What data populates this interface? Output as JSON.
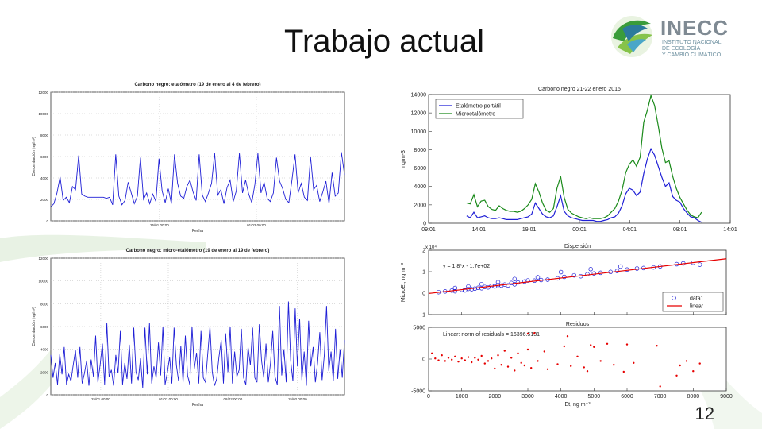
{
  "slide": {
    "title": "Trabajo actual",
    "page_number": "12",
    "logo": {
      "name": "INECC",
      "line1": "INSTITUTO NACIONAL",
      "line2": "DE ECOLOGÍA",
      "line3": "Y CAMBIO CLIMÁTICO"
    }
  },
  "colors": {
    "blue": "#1f1fd6",
    "green": "#1a8a1a",
    "red": "#e60000"
  },
  "chart_data": [
    {
      "id": "etalometro",
      "type": "line",
      "title": "Carbono negro: etalómetro (19 de enero al 4 de febrero)",
      "xlabel": "Fecha",
      "ylabel": "Concentración [ng/m³]",
      "xtick_labels": [
        "25/01 00:00",
        "01/02 00:00"
      ],
      "yticks": [
        0,
        2000,
        4000,
        6000,
        8000,
        10000,
        12000
      ],
      "ylim": [
        0,
        12000
      ],
      "grid": true,
      "series": [
        {
          "color": "#1f1fd6",
          "values": [
            1300,
            1600,
            2600,
            4100,
            1900,
            2200,
            1700,
            3200,
            2900,
            6100,
            2500,
            2300,
            2200,
            2200,
            2200,
            2200,
            2200,
            2200,
            2100,
            2200,
            1500,
            6200,
            2300,
            1500,
            1900,
            3600,
            2600,
            1600,
            2300,
            5900,
            2000,
            2600,
            1600,
            2500,
            1800,
            5800,
            2800,
            1700,
            3000,
            1600,
            6200,
            3500,
            2300,
            2100,
            3200,
            3800,
            2700,
            1900,
            6200,
            2400,
            1800,
            2600,
            3500,
            6300,
            2400,
            2900,
            1600,
            3100,
            3800,
            1800,
            2800,
            6300,
            2600,
            3800,
            2500,
            1700,
            3400,
            6300,
            2600,
            3600,
            2100,
            1800,
            2600,
            5900,
            3700,
            3000,
            2000,
            1700,
            3800,
            6200,
            2600,
            3500,
            2200,
            1900,
            6000,
            2900,
            3300,
            1800,
            2700,
            3700,
            1600,
            4500,
            2300,
            2600,
            6400,
            4300
          ]
        }
      ]
    },
    {
      "id": "microetalometro",
      "type": "line",
      "title": "Carbono negro: micro-etalómetro (19 de enero al 19 de febrero)",
      "xlabel": "Fecha",
      "ylabel": "Concentración [ng/m³]",
      "xtick_labels": [
        "25/01 00:00",
        "01/02 00:00",
        "08/02 00:00",
        "15/02 00:00"
      ],
      "yticks": [
        0,
        2000,
        4000,
        6000,
        8000,
        10000,
        12000
      ],
      "ylim": [
        0,
        12000
      ],
      "grid": true,
      "series": [
        {
          "color": "#1f1fd6",
          "values": [
            3500,
            1500,
            2800,
            900,
            3600,
            1800,
            4200,
            900,
            1800,
            1200,
            2600,
            3900,
            1500,
            4200,
            1000,
            1900,
            3000,
            800,
            3100,
            1600,
            5200,
            1100,
            2600,
            4500,
            900,
            6300,
            1600,
            2200,
            800,
            3500,
            1900,
            5600,
            900,
            2800,
            1400,
            4400,
            1000,
            5900,
            2000,
            1300,
            3200,
            600,
            5900,
            1800,
            6300,
            1000,
            2500,
            1500,
            4600,
            1700,
            6000,
            900,
            2000,
            3300,
            1000,
            5900,
            2600,
            1200,
            4300,
            1100,
            5200,
            1700,
            900,
            6000,
            2300,
            3700,
            1000,
            5600,
            1500,
            1100,
            3600,
            6000,
            2000,
            800,
            1400,
            3300,
            4800,
            1000,
            5400,
            2000,
            6000,
            1000,
            3800,
            1600,
            2200,
            5800,
            1500,
            900,
            4200,
            2600,
            5900,
            1500,
            1100,
            6200,
            3000,
            1500,
            4500,
            1100,
            2800,
            5600,
            1600,
            900,
            7800,
            1700,
            4000,
            1100,
            8200,
            3000,
            1200,
            7600,
            2500,
            6700,
            1300,
            3800,
            800,
            6500,
            2500,
            4200,
            1100,
            2800,
            5500,
            1300,
            3500,
            7800,
            2100,
            3800,
            1200,
            5800,
            1400,
            4000,
            1500,
            4800
          ]
        }
      ]
    },
    {
      "id": "carbono-negro-21-22",
      "type": "line",
      "title": "Carbono negro 21-22 enero 2015",
      "ylabel": "ng/m-3",
      "xtick_labels": [
        "09:01",
        "14:01",
        "19:01",
        "00:01",
        "04:01",
        "09:01",
        "14:01"
      ],
      "yticks": [
        0,
        2000,
        4000,
        6000,
        8000,
        10000,
        12000,
        14000
      ],
      "ylim": [
        0,
        14000
      ],
      "legend": "top-left",
      "series": [
        {
          "name": "Etalómetro portátil",
          "color": "#1f1fd6",
          "values": [
            800,
            600,
            1200,
            600,
            700,
            800,
            600,
            500,
            500,
            600,
            500,
            400,
            400,
            400,
            400,
            500,
            600,
            700,
            1000,
            2200,
            1600,
            1000,
            700,
            600,
            800,
            1800,
            3000,
            1300,
            800,
            600,
            500,
            400,
            300,
            300,
            300,
            300,
            200,
            200,
            300,
            400,
            600,
            700,
            1100,
            1900,
            3200,
            3800,
            3600,
            3000,
            3400,
            5400,
            7000,
            8100,
            7400,
            6200,
            5000,
            4000,
            4400,
            2900,
            2500,
            2300,
            1600,
            1100,
            700,
            600,
            300,
            100
          ]
        },
        {
          "name": "Microetalómetro",
          "color": "#1a8a1a",
          "values": [
            2200,
            2100,
            3100,
            1800,
            2400,
            2500,
            1800,
            1500,
            1400,
            1900,
            1600,
            1400,
            1300,
            1300,
            1200,
            1300,
            1600,
            2000,
            2600,
            4300,
            3400,
            2200,
            1400,
            1200,
            1600,
            3800,
            5100,
            2800,
            1500,
            1100,
            900,
            700,
            600,
            500,
            600,
            500,
            500,
            500,
            600,
            800,
            1200,
            1600,
            2400,
            3600,
            5500,
            6400,
            6900,
            6200,
            7200,
            11000,
            12300,
            13900,
            12800,
            10600,
            8200,
            6600,
            6800,
            5100,
            3800,
            2800,
            2100,
            1400,
            900,
            700,
            600,
            1200
          ]
        }
      ]
    },
    {
      "id": "dispersion",
      "type": "scatter",
      "title": "Dispersión",
      "ylabel": "MicroEt, ng m⁻³",
      "xticks": [
        0,
        1000,
        2000,
        3000,
        4000,
        5000,
        6000,
        7000,
        8000,
        9000
      ],
      "yticks": [
        -1,
        0,
        1,
        2
      ],
      "y_multiplier": "x 10⁴",
      "xlim": [
        0,
        9000
      ],
      "ylim": [
        -1,
        2
      ],
      "annotation": "y = 1.8*x - 1.7e+02",
      "legend": "bottom-right",
      "series": [
        {
          "name": "data1",
          "color": "#1f1fd6",
          "points": [
            [
              300,
              500
            ],
            [
              500,
              800
            ],
            [
              700,
              1200
            ],
            [
              800,
              900
            ],
            [
              1000,
              1600
            ],
            [
              1100,
              1300
            ],
            [
              1200,
              2000
            ],
            [
              1300,
              1800
            ],
            [
              1400,
              2100
            ],
            [
              1500,
              2500
            ],
            [
              1600,
              2300
            ],
            [
              1700,
              2900
            ],
            [
              1800,
              2700
            ],
            [
              1900,
              3400
            ],
            [
              2000,
              3100
            ],
            [
              2100,
              3800
            ],
            [
              2200,
              3500
            ],
            [
              2300,
              4000
            ],
            [
              2400,
              3600
            ],
            [
              2500,
              4700
            ],
            [
              2600,
              4100
            ],
            [
              2700,
              5000
            ],
            [
              2900,
              5400
            ],
            [
              3000,
              5900
            ],
            [
              3200,
              5800
            ],
            [
              3400,
              6100
            ],
            [
              3600,
              6300
            ],
            [
              3900,
              6900
            ],
            [
              4100,
              7600
            ],
            [
              4400,
              8300
            ],
            [
              4600,
              7900
            ],
            [
              4800,
              8800
            ],
            [
              5000,
              9200
            ],
            [
              5200,
              9500
            ],
            [
              5500,
              9900
            ],
            [
              5700,
              10300
            ],
            [
              6000,
              11000
            ],
            [
              6300,
              11500
            ],
            [
              6500,
              11700
            ],
            [
              6800,
              12000
            ],
            [
              7000,
              12500
            ],
            [
              7500,
              13500
            ],
            [
              7700,
              13900
            ],
            [
              8000,
              14200
            ],
            [
              8200,
              13300
            ],
            [
              800,
              2400
            ],
            [
              1200,
              3100
            ],
            [
              1600,
              4200
            ],
            [
              2100,
              5100
            ],
            [
              2600,
              6600
            ],
            [
              3300,
              7400
            ],
            [
              4000,
              9800
            ],
            [
              4900,
              11200
            ],
            [
              5800,
              12400
            ]
          ]
        },
        {
          "name": "linear",
          "color": "#e60000",
          "line": [
            [
              0,
              -170
            ],
            [
              9000,
              16030
            ]
          ]
        }
      ]
    },
    {
      "id": "residuos",
      "type": "scatter",
      "title": "Residuos",
      "xlabel": "Et, ng m⁻³",
      "xticks": [
        0,
        1000,
        2000,
        3000,
        4000,
        5000,
        6000,
        7000,
        8000,
        9000
      ],
      "yticks": [
        -5000,
        0,
        5000
      ],
      "xlim": [
        0,
        9000
      ],
      "ylim": [
        -5000,
        5000
      ],
      "annotation": "Linear: norm of residuals = 16396.5131",
      "series": [
        {
          "name": "residuals",
          "color": "#e60000",
          "points": [
            [
              100,
              900
            ],
            [
              200,
              100
            ],
            [
              300,
              -200
            ],
            [
              400,
              600
            ],
            [
              500,
              -300
            ],
            [
              600,
              200
            ],
            [
              700,
              -100
            ],
            [
              800,
              400
            ],
            [
              900,
              -400
            ],
            [
              1000,
              100
            ],
            [
              1100,
              -200
            ],
            [
              1200,
              300
            ],
            [
              1300,
              -500
            ],
            [
              1400,
              200
            ],
            [
              1500,
              -100
            ],
            [
              1600,
              500
            ],
            [
              1700,
              -700
            ],
            [
              1800,
              -300
            ],
            [
              1900,
              100
            ],
            [
              2000,
              -1500
            ],
            [
              2100,
              600
            ],
            [
              2200,
              -900
            ],
            [
              2300,
              1300
            ],
            [
              2400,
              -1200
            ],
            [
              2500,
              200
            ],
            [
              2600,
              -1800
            ],
            [
              2700,
              900
            ],
            [
              2800,
              -600
            ],
            [
              2900,
              -1000
            ],
            [
              3000,
              1500
            ],
            [
              3100,
              -1400
            ],
            [
              3200,
              4100
            ],
            [
              3300,
              -300
            ],
            [
              3500,
              1200
            ],
            [
              3600,
              -1600
            ],
            [
              3900,
              -800
            ],
            [
              4100,
              2000
            ],
            [
              4300,
              -1100
            ],
            [
              4500,
              400
            ],
            [
              4700,
              -1300
            ],
            [
              4900,
              2200
            ],
            [
              5000,
              1900
            ],
            [
              5200,
              -300
            ],
            [
              5400,
              2400
            ],
            [
              5600,
              -900
            ],
            [
              5900,
              -2000
            ],
            [
              6200,
              -600
            ],
            [
              6900,
              2100
            ],
            [
              7000,
              -4300
            ],
            [
              7500,
              -2600
            ],
            [
              7600,
              -1000
            ],
            [
              7800,
              -300
            ],
            [
              8000,
              -1900
            ],
            [
              8200,
              -700
            ],
            [
              3000,
              4000
            ],
            [
              4200,
              3600
            ],
            [
              4800,
              -1900
            ],
            [
              6000,
              2300
            ]
          ]
        }
      ]
    }
  ]
}
